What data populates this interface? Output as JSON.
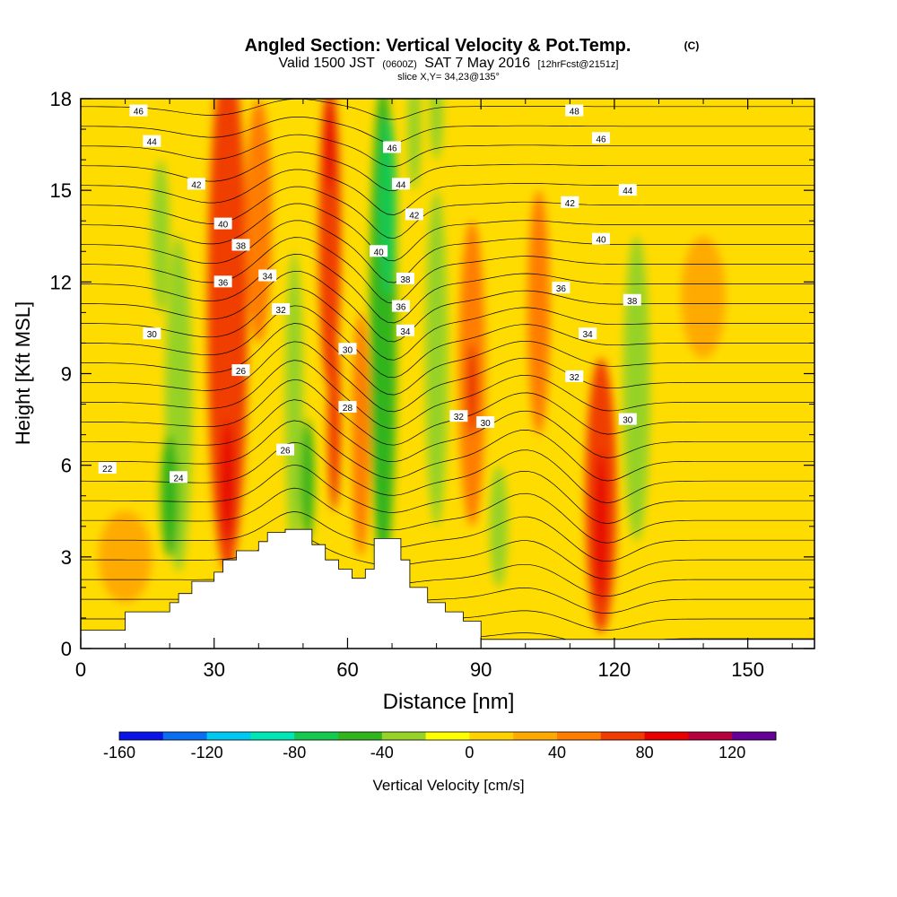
{
  "chart_data": {
    "type": "heatmap",
    "title": "Angled Section: Vertical Velocity & Pot.Temp.",
    "title_unit": "(C)",
    "subtitle_valid": "Valid 1500 JST",
    "subtitle_utc": "(0600Z)",
    "subtitle_date": "SAT 7 May 2016",
    "subtitle_fcst": "[12hrFcst@2151z]",
    "slice_label": "slice X,Y= 34,23@135°",
    "xlabel": "Distance [nm]",
    "ylabel": "Height [Kft MSL]",
    "xlim": [
      0,
      165
    ],
    "ylim": [
      0,
      18
    ],
    "x_ticks": [
      0,
      30,
      60,
      90,
      120,
      150
    ],
    "x_tick_labels": [
      "0",
      "30",
      "60",
      "90",
      "120",
      "150"
    ],
    "y_ticks": [
      0,
      3,
      6,
      9,
      12,
      15,
      18
    ],
    "y_tick_labels": [
      "0",
      "3",
      "6",
      "9",
      "12",
      "15",
      "18"
    ],
    "colorbar": {
      "label": "Vertical Velocity [cm/s]",
      "min": -160,
      "max": 140,
      "step": 20,
      "tick_values": [
        -160,
        -120,
        -80,
        -40,
        0,
        40,
        80,
        120
      ],
      "tick_labels": [
        "-160",
        "-120",
        "-80",
        "-40",
        "0",
        "40",
        "80",
        "120"
      ],
      "colors": [
        "#0a14e6",
        "#0a6ef0",
        "#00c8f0",
        "#00e6b4",
        "#14c850",
        "#32b41e",
        "#96d228",
        "#ffff00",
        "#ffd200",
        "#ffaa00",
        "#ff7d00",
        "#f03c00",
        "#e60000",
        "#b4003c",
        "#640096"
      ]
    },
    "background_color": "#ffdc00",
    "terrain": [
      [
        0,
        0.6
      ],
      [
        10,
        0.6
      ],
      [
        10,
        1.2
      ],
      [
        20,
        1.2
      ],
      [
        20,
        1.5
      ],
      [
        22,
        1.5
      ],
      [
        22,
        1.8
      ],
      [
        25,
        1.8
      ],
      [
        25,
        2.2
      ],
      [
        30,
        2.2
      ],
      [
        30,
        2.5
      ],
      [
        32,
        2.5
      ],
      [
        32,
        2.9
      ],
      [
        35,
        2.9
      ],
      [
        35,
        3.2
      ],
      [
        40,
        3.2
      ],
      [
        40,
        3.5
      ],
      [
        42,
        3.5
      ],
      [
        42,
        3.8
      ],
      [
        46,
        3.8
      ],
      [
        46,
        3.9
      ],
      [
        52,
        3.9
      ],
      [
        52,
        3.4
      ],
      [
        55,
        3.4
      ],
      [
        55,
        2.9
      ],
      [
        58,
        2.9
      ],
      [
        58,
        2.6
      ],
      [
        61,
        2.6
      ],
      [
        61,
        2.3
      ],
      [
        64,
        2.3
      ],
      [
        64,
        2.6
      ],
      [
        66,
        2.6
      ],
      [
        66,
        3.6
      ],
      [
        72,
        3.6
      ],
      [
        72,
        2.9
      ],
      [
        74,
        2.9
      ],
      [
        74,
        2.0
      ],
      [
        78,
        2.0
      ],
      [
        78,
        1.5
      ],
      [
        82,
        1.5
      ],
      [
        82,
        1.2
      ],
      [
        86,
        1.2
      ],
      [
        86,
        0.9
      ],
      [
        90,
        0.9
      ],
      [
        90,
        0.3
      ],
      [
        165,
        0.3
      ],
      [
        165,
        0
      ],
      [
        0,
        0
      ]
    ],
    "vertical_velocity_features": [
      {
        "x": 22,
        "y": 8.0,
        "w": 6,
        "h": 11,
        "value": -40
      },
      {
        "x": 20,
        "y": 5.0,
        "w": 4,
        "h": 4,
        "value": -60
      },
      {
        "x": 18,
        "y": 13.5,
        "w": 4,
        "h": 5,
        "value": -40
      },
      {
        "x": 33,
        "y": 11.0,
        "w": 9,
        "h": 17,
        "value": 60
      },
      {
        "x": 33,
        "y": 5.5,
        "w": 3,
        "h": 4,
        "value": 80
      },
      {
        "x": 40,
        "y": 14.0,
        "w": 6,
        "h": 8,
        "value": 40
      },
      {
        "x": 48,
        "y": 8.0,
        "w": 4,
        "h": 10,
        "value": -40
      },
      {
        "x": 51,
        "y": 5.5,
        "w": 3,
        "h": 4,
        "value": -60
      },
      {
        "x": 56,
        "y": 13.5,
        "w": 5,
        "h": 10,
        "value": 60
      },
      {
        "x": 56,
        "y": 16.5,
        "w": 2,
        "h": 3,
        "value": 80
      },
      {
        "x": 57,
        "y": 7.5,
        "w": 3,
        "h": 6,
        "value": 60
      },
      {
        "x": 68,
        "y": 10.5,
        "w": 6,
        "h": 16,
        "value": -60
      },
      {
        "x": 69,
        "y": 14.5,
        "w": 4,
        "h": 6,
        "value": -80
      },
      {
        "x": 63,
        "y": 7.0,
        "w": 4,
        "h": 8,
        "value": 40
      },
      {
        "x": 80,
        "y": 9.5,
        "w": 5,
        "h": 11,
        "value": -40
      },
      {
        "x": 88,
        "y": 9.0,
        "w": 6,
        "h": 10,
        "value": 40
      },
      {
        "x": 88,
        "y": 8.5,
        "w": 2,
        "h": 3,
        "value": 80
      },
      {
        "x": 103,
        "y": 11.0,
        "w": 5,
        "h": 8,
        "value": 40
      },
      {
        "x": 94,
        "y": 4.0,
        "w": 4,
        "h": 4,
        "value": -40
      },
      {
        "x": 117,
        "y": 5.0,
        "w": 7,
        "h": 9,
        "value": 60
      },
      {
        "x": 117,
        "y": 4.0,
        "w": 3,
        "h": 5,
        "value": 80
      },
      {
        "x": 125,
        "y": 8.5,
        "w": 6,
        "h": 10,
        "value": -40
      },
      {
        "x": 75,
        "y": 17.0,
        "w": 3,
        "h": 4,
        "value": -40
      },
      {
        "x": 80,
        "y": 17.5,
        "w": 3,
        "h": 3,
        "value": -40
      },
      {
        "x": 140,
        "y": 11.5,
        "w": 10,
        "h": 4,
        "value": 20
      },
      {
        "x": 10,
        "y": 3.0,
        "w": 12,
        "h": 3,
        "value": 20
      }
    ],
    "potential_temperature_contours": {
      "interval": 1,
      "min": 20,
      "max": 49,
      "labels": [
        {
          "x": 13,
          "y": 17.6,
          "text": "46"
        },
        {
          "x": 16,
          "y": 16.6,
          "text": "44"
        },
        {
          "x": 26,
          "y": 15.2,
          "text": "42"
        },
        {
          "x": 32,
          "y": 13.9,
          "text": "40"
        },
        {
          "x": 36,
          "y": 13.2,
          "text": "38"
        },
        {
          "x": 32,
          "y": 12.0,
          "text": "36"
        },
        {
          "x": 42,
          "y": 12.2,
          "text": "34"
        },
        {
          "x": 45,
          "y": 11.1,
          "text": "32"
        },
        {
          "x": 16,
          "y": 10.3,
          "text": "30"
        },
        {
          "x": 36,
          "y": 9.1,
          "text": "26"
        },
        {
          "x": 6,
          "y": 5.9,
          "text": "22"
        },
        {
          "x": 22,
          "y": 5.6,
          "text": "24"
        },
        {
          "x": 46,
          "y": 6.5,
          "text": "26"
        },
        {
          "x": 60,
          "y": 9.8,
          "text": "30"
        },
        {
          "x": 60,
          "y": 7.9,
          "text": "28"
        },
        {
          "x": 70,
          "y": 16.4,
          "text": "46"
        },
        {
          "x": 72,
          "y": 15.2,
          "text": "44"
        },
        {
          "x": 75,
          "y": 14.2,
          "text": "42"
        },
        {
          "x": 67,
          "y": 13.0,
          "text": "40"
        },
        {
          "x": 73,
          "y": 12.1,
          "text": "38"
        },
        {
          "x": 72,
          "y": 11.2,
          "text": "36"
        },
        {
          "x": 73,
          "y": 10.4,
          "text": "34"
        },
        {
          "x": 85,
          "y": 7.6,
          "text": "32"
        },
        {
          "x": 91,
          "y": 7.4,
          "text": "30"
        },
        {
          "x": 111,
          "y": 17.6,
          "text": "48"
        },
        {
          "x": 117,
          "y": 16.7,
          "text": "46"
        },
        {
          "x": 123,
          "y": 15.0,
          "text": "44"
        },
        {
          "x": 110,
          "y": 14.6,
          "text": "42"
        },
        {
          "x": 117,
          "y": 13.4,
          "text": "40"
        },
        {
          "x": 108,
          "y": 11.8,
          "text": "36"
        },
        {
          "x": 124,
          "y": 11.4,
          "text": "38"
        },
        {
          "x": 114,
          "y": 10.3,
          "text": "34"
        },
        {
          "x": 111,
          "y": 8.9,
          "text": "32"
        },
        {
          "x": 123,
          "y": 7.5,
          "text": "30"
        }
      ]
    }
  }
}
